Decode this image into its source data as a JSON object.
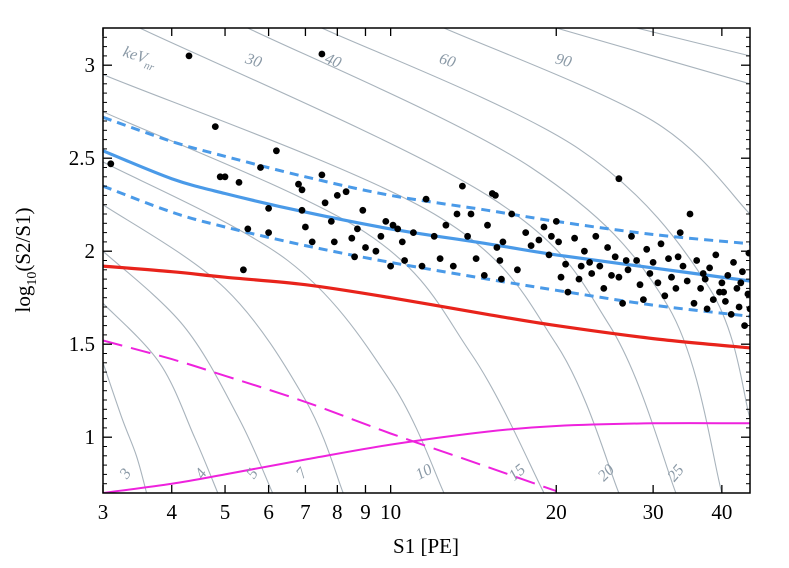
{
  "chart_data": {
    "type": "scatter",
    "title": "",
    "xlabel": "S1 [PE]",
    "ylabel_main": "log",
    "ylabel_sub": "10",
    "ylabel_rest": "(S2/S1)",
    "xscale": "log",
    "xlim": [
      3,
      45
    ],
    "ylim": [
      0.7,
      3.2
    ],
    "x_ticks": [
      3,
      4,
      5,
      6,
      7,
      8,
      9,
      10,
      20,
      30,
      40
    ],
    "x_tick_labels": [
      "3",
      "4",
      "5",
      "6",
      "7",
      "8",
      "9",
      "10",
      "20",
      "30",
      "40"
    ],
    "y_ticks": [
      1,
      1.5,
      2,
      2.5,
      3
    ],
    "y_tick_labels": [
      "1",
      "1.5",
      "2",
      "2.5",
      "3"
    ],
    "contour_unit_label": "keV",
    "contour_unit_sub": "nr",
    "contour_labels": [
      "3",
      "4",
      "5",
      "7",
      "10",
      "15",
      "20",
      "25",
      "30",
      "40",
      "60",
      "90"
    ],
    "colors": {
      "band": "#4a9ae8",
      "leakage_line": "#e8231b",
      "magenta": "#ee22dd",
      "contour": "#a8b3bc",
      "points": "#000000"
    },
    "series": [
      {
        "name": "ER band median",
        "style": "solid-blue",
        "x": [
          3,
          4,
          5,
          7,
          10,
          15,
          20,
          30,
          45
        ],
        "y": [
          2.54,
          2.39,
          2.31,
          2.21,
          2.12,
          2.04,
          1.98,
          1.91,
          1.84
        ]
      },
      {
        "name": "ER band upper",
        "style": "dashed-blue",
        "x": [
          3,
          4,
          5,
          7,
          10,
          15,
          20,
          30,
          45
        ],
        "y": [
          2.72,
          2.59,
          2.51,
          2.4,
          2.3,
          2.22,
          2.16,
          2.09,
          2.04
        ]
      },
      {
        "name": "ER band lower",
        "style": "dashed-blue",
        "x": [
          3,
          4,
          5,
          7,
          10,
          15,
          20,
          30,
          45
        ],
        "y": [
          2.35,
          2.21,
          2.13,
          2.03,
          1.94,
          1.85,
          1.79,
          1.71,
          1.65
        ]
      },
      {
        "name": "Red line",
        "style": "solid-red",
        "x": [
          3,
          4,
          5,
          7,
          10,
          15,
          20,
          30,
          45
        ],
        "y": [
          1.92,
          1.89,
          1.86,
          1.82,
          1.75,
          1.66,
          1.6,
          1.53,
          1.48
        ]
      },
      {
        "name": "Magenta dashed",
        "style": "dashed-magenta",
        "x": [
          3,
          4,
          5,
          7,
          10,
          15,
          20
        ],
        "y": [
          1.52,
          1.42,
          1.33,
          1.19,
          1.02,
          0.84,
          0.71
        ]
      },
      {
        "name": "Magenta solid",
        "style": "solid-magenta",
        "x": [
          3,
          4,
          5,
          7,
          10,
          15,
          20,
          30,
          45
        ],
        "y": [
          0.7,
          0.75,
          0.8,
          0.88,
          0.96,
          1.03,
          1.06,
          1.075,
          1.075
        ]
      }
    ],
    "contours": [
      {
        "label": "3",
        "x": [
          3,
          3.25,
          3.45,
          3.6
        ],
        "y": [
          1.4,
          1.1,
          0.9,
          0.7
        ]
      },
      {
        "label": "4",
        "x": [
          3,
          3.8,
          4.4,
          4.85
        ],
        "y": [
          1.72,
          1.4,
          1.0,
          0.7
        ]
      },
      {
        "label": "5",
        "x": [
          3,
          4.2,
          5.3,
          6.1
        ],
        "y": [
          2.0,
          1.6,
          1.1,
          0.7
        ]
      },
      {
        "label": "7",
        "x": [
          3,
          5.0,
          7.0,
          8.2
        ],
        "y": [
          2.25,
          1.8,
          1.2,
          0.7
        ]
      },
      {
        "label": "10",
        "x": [
          3,
          6.5,
          10.0,
          12.5
        ],
        "y": [
          2.48,
          1.95,
          1.3,
          0.7
        ]
      },
      {
        "label": "15",
        "x": [
          3,
          9.0,
          14.0,
          19.0
        ],
        "y": [
          2.75,
          2.1,
          1.45,
          0.7
        ]
      },
      {
        "label": "20",
        "x": [
          3,
          12.0,
          20.0,
          26.0
        ],
        "y": [
          2.95,
          2.2,
          1.5,
          0.7
        ]
      },
      {
        "label": "25",
        "x": [
          3.5,
          15.0,
          25.0,
          33.0
        ],
        "y": [
          3.2,
          2.3,
          1.6,
          0.7
        ]
      },
      {
        "label": "30",
        "x": [
          5.5,
          18.0,
          32.0,
          40.0
        ],
        "y": [
          3.2,
          2.45,
          1.7,
          0.7
        ]
      },
      {
        "label": "40",
        "x": [
          7.5,
          22.0,
          38.0,
          45.0
        ],
        "y": [
          3.2,
          2.55,
          1.8,
          1.1
        ]
      },
      {
        "label": "60",
        "x": [
          12.5,
          30.0,
          45.0
        ],
        "y": [
          3.2,
          2.7,
          2.2
        ]
      },
      {
        "label": "90",
        "x": [
          20.0,
          45.0
        ],
        "y": [
          3.2,
          2.9
        ]
      },
      {
        "label": "",
        "x": [
          28.0,
          45.0
        ],
        "y": [
          3.2,
          3.05
        ]
      }
    ],
    "points": [
      [
        3.1,
        2.47
      ],
      [
        4.3,
        3.05
      ],
      [
        4.8,
        2.67
      ],
      [
        4.9,
        2.4
      ],
      [
        5.0,
        2.4
      ],
      [
        5.3,
        2.37
      ],
      [
        5.4,
        1.9
      ],
      [
        5.5,
        2.12
      ],
      [
        5.8,
        2.45
      ],
      [
        6.0,
        2.1
      ],
      [
        6.0,
        2.23
      ],
      [
        6.2,
        2.54
      ],
      [
        6.8,
        2.36
      ],
      [
        6.9,
        2.33
      ],
      [
        6.9,
        2.22
      ],
      [
        7.0,
        2.13
      ],
      [
        7.2,
        2.05
      ],
      [
        7.5,
        3.06
      ],
      [
        7.5,
        2.41
      ],
      [
        7.6,
        2.26
      ],
      [
        7.8,
        2.16
      ],
      [
        7.9,
        2.05
      ],
      [
        8.0,
        2.3
      ],
      [
        8.3,
        2.32
      ],
      [
        8.5,
        2.07
      ],
      [
        8.6,
        1.97
      ],
      [
        8.7,
        2.12
      ],
      [
        8.9,
        2.22
      ],
      [
        9.0,
        2.02
      ],
      [
        9.4,
        2.0
      ],
      [
        9.6,
        2.08
      ],
      [
        9.8,
        2.16
      ],
      [
        10.0,
        1.92
      ],
      [
        10.1,
        2.14
      ],
      [
        10.3,
        2.12
      ],
      [
        10.5,
        2.05
      ],
      [
        10.6,
        1.95
      ],
      [
        11.0,
        2.1
      ],
      [
        11.4,
        1.92
      ],
      [
        11.6,
        2.28
      ],
      [
        12.0,
        2.08
      ],
      [
        12.3,
        1.96
      ],
      [
        12.6,
        2.14
      ],
      [
        13.0,
        1.92
      ],
      [
        13.2,
        2.2
      ],
      [
        13.5,
        2.35
      ],
      [
        13.8,
        2.08
      ],
      [
        14.0,
        2.2
      ],
      [
        14.3,
        1.96
      ],
      [
        14.8,
        1.87
      ],
      [
        15.0,
        2.14
      ],
      [
        15.3,
        2.31
      ],
      [
        15.5,
        2.3
      ],
      [
        15.6,
        2.02
      ],
      [
        15.8,
        1.95
      ],
      [
        15.9,
        1.85
      ],
      [
        16.0,
        2.05
      ],
      [
        16.6,
        2.2
      ],
      [
        17.0,
        1.9
      ],
      [
        17.6,
        2.1
      ],
      [
        18.0,
        2.03
      ],
      [
        18.6,
        2.06
      ],
      [
        19.0,
        2.13
      ],
      [
        19.4,
        1.98
      ],
      [
        19.6,
        2.08
      ],
      [
        20.0,
        2.16
      ],
      [
        20.2,
        2.05
      ],
      [
        20.4,
        1.86
      ],
      [
        20.8,
        1.93
      ],
      [
        21.0,
        1.78
      ],
      [
        21.6,
        2.07
      ],
      [
        22.0,
        1.85
      ],
      [
        22.5,
        2.0
      ],
      [
        23.0,
        1.94
      ],
      [
        23.2,
        1.88
      ],
      [
        23.6,
        2.08
      ],
      [
        24.0,
        1.92
      ],
      [
        24.4,
        1.8
      ],
      [
        24.8,
        2.02
      ],
      [
        25.2,
        1.87
      ],
      [
        25.6,
        1.97
      ],
      [
        26.0,
        1.86
      ],
      [
        26.0,
        2.39
      ],
      [
        26.4,
        1.72
      ],
      [
        27.0,
        1.9
      ],
      [
        27.4,
        2.08
      ],
      [
        28.0,
        1.95
      ],
      [
        28.4,
        1.82
      ],
      [
        28.8,
        1.74
      ],
      [
        29.2,
        2.01
      ],
      [
        29.6,
        1.88
      ],
      [
        30.0,
        1.94
      ],
      [
        30.6,
        1.83
      ],
      [
        31.0,
        2.04
      ],
      [
        31.5,
        1.76
      ],
      [
        32.0,
        1.96
      ],
      [
        32.4,
        1.86
      ],
      [
        33.0,
        1.8
      ],
      [
        33.6,
        2.1
      ],
      [
        34.0,
        1.92
      ],
      [
        34.6,
        1.84
      ],
      [
        35.0,
        2.2
      ],
      [
        35.6,
        1.72
      ],
      [
        36.0,
        1.95
      ],
      [
        36.6,
        1.8
      ],
      [
        37.0,
        1.88
      ],
      [
        37.6,
        1.69
      ],
      [
        38.0,
        1.91
      ],
      [
        38.6,
        1.74
      ],
      [
        39.0,
        1.98
      ],
      [
        39.6,
        1.78
      ],
      [
        40.0,
        1.83
      ],
      [
        40.6,
        1.73
      ],
      [
        41.0,
        1.87
      ],
      [
        41.6,
        1.66
      ],
      [
        42.0,
        1.94
      ],
      [
        42.6,
        1.8
      ],
      [
        43.0,
        1.7
      ],
      [
        43.6,
        1.89
      ],
      [
        44.0,
        1.6
      ],
      [
        44.6,
        1.77
      ],
      [
        44.8,
        1.99
      ],
      [
        45.0,
        1.69
      ],
      [
        22.2,
        1.92
      ],
      [
        26.8,
        1.95
      ],
      [
        33.3,
        1.97
      ],
      [
        37.3,
        1.85
      ],
      [
        40.3,
        1.78
      ],
      [
        43.3,
        1.83
      ]
    ]
  }
}
